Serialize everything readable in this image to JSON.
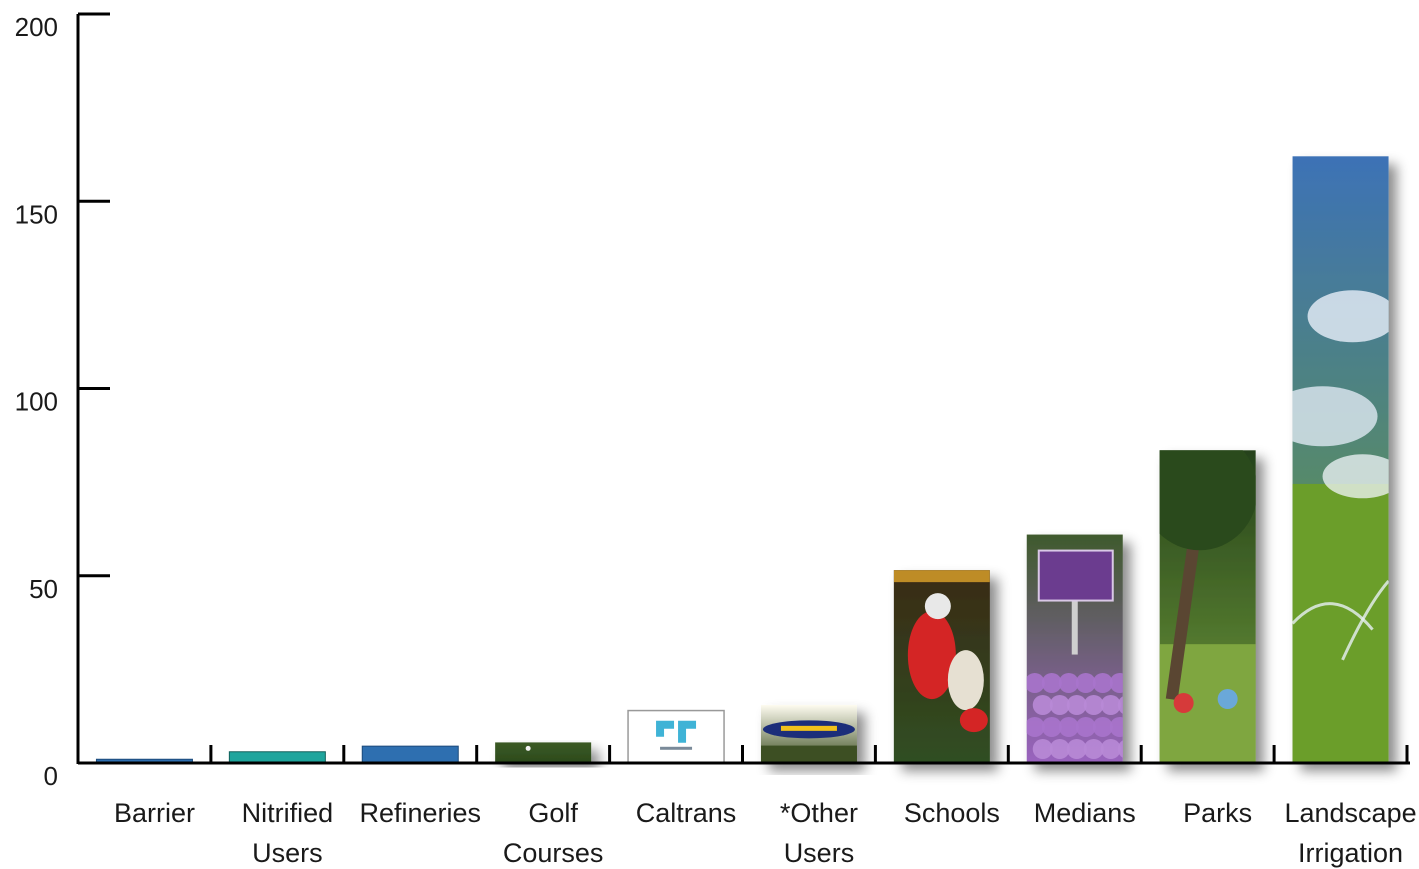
{
  "chart_data": {
    "type": "bar",
    "categories": [
      [
        "Barrier"
      ],
      [
        "Nitrified",
        "Users"
      ],
      [
        "Refineries"
      ],
      [
        "Golf",
        "Courses"
      ],
      [
        "Caltrans"
      ],
      [
        "*Other",
        "Users"
      ],
      [
        "Schools"
      ],
      [
        "Medians"
      ],
      [
        "Parks"
      ],
      [
        "Landscape",
        "Irrigation"
      ]
    ],
    "values": [
      1,
      3,
      4.5,
      5.5,
      14,
      15.5,
      51.5,
      61,
      83.5,
      162
    ],
    "ylim": [
      0,
      200
    ],
    "yticks": [
      0,
      50,
      100,
      150,
      200
    ],
    "title": "",
    "xlabel": "",
    "ylabel": "",
    "grid": false,
    "bar_styles": [
      {
        "kind": "flat",
        "fill": "#2e6fb0",
        "stroke": "#1c4a7a"
      },
      {
        "kind": "flat",
        "fill": "#1fa59d",
        "stroke": "#11605b"
      },
      {
        "kind": "flat",
        "fill": "#2e6fb0",
        "stroke": "#1c4a7a"
      },
      {
        "kind": "photo",
        "scene": "golf-grass-photo",
        "top": "#3b5a25",
        "bottom": "#2c4a1c"
      },
      {
        "kind": "logo",
        "scene": "caltrans-logo",
        "fill": "#ffffff",
        "stroke": "#999999",
        "accent": "#3fb3d6"
      },
      {
        "kind": "photo",
        "scene": "goodyear-blimp-photo",
        "top": "#fefcf0",
        "bottom": "#3d4f23",
        "accent": "#1c2e7a"
      },
      {
        "kind": "photo",
        "scene": "football-players-photo",
        "top": "#3a2a16",
        "bottom": "#2f4f22",
        "accent": "#d42525"
      },
      {
        "kind": "photo",
        "scene": "purple-flowers-sign-photo",
        "top": "#3f5a2d",
        "bottom": "#9a63bf",
        "accent": "#6b3c8f"
      },
      {
        "kind": "photo",
        "scene": "park-tree-children-photo",
        "top": "#25421b",
        "bottom": "#6f9a3a",
        "accent": "#d63a3a"
      },
      {
        "kind": "photo",
        "scene": "sprinkler-sky-field-photo",
        "top": "#3d72b6",
        "bottom": "#6b9e2a",
        "accent": "#dfe9f3"
      }
    ]
  }
}
